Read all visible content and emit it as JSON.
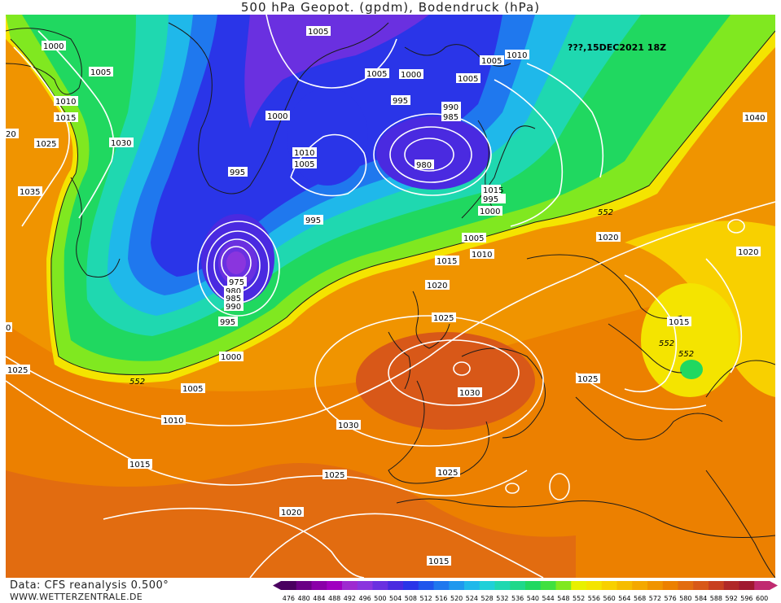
{
  "title": "500 hPa Geopot. (gpdm), Bodendruck (hPa)",
  "run_label": "???,15DEC2021 18Z",
  "footer": {
    "data_source": "Data: CFS reanalysis 0.500°",
    "website": "WWW.WETTERZENTRALE.DE"
  },
  "legend": {
    "values": [
      "476",
      "480",
      "484",
      "488",
      "492",
      "496",
      "500",
      "504",
      "508",
      "512",
      "516",
      "520",
      "524",
      "528",
      "532",
      "536",
      "540",
      "544",
      "548",
      "552",
      "556",
      "560",
      "564",
      "568",
      "572",
      "576",
      "580",
      "584",
      "588",
      "592",
      "596",
      "600"
    ],
    "colors": [
      "#4a0060",
      "#6a0085",
      "#8a00a8",
      "#a000c0",
      "#9e2ad0",
      "#8a35de",
      "#6a30e0",
      "#4a2ae0",
      "#2a35e8",
      "#1f55ec",
      "#1f78ee",
      "#1f98ee",
      "#1fb8ea",
      "#1fd0d8",
      "#1fd8b0",
      "#1fd88a",
      "#20d860",
      "#40e040",
      "#80e820",
      "#e8f000",
      "#f4e400",
      "#f8d000",
      "#f6bc00",
      "#f4a800",
      "#f09400",
      "#ec8000",
      "#e26c10",
      "#d85818",
      "#c84020",
      "#b02828",
      "#a01830",
      "#c02a70"
    ]
  },
  "isobars": [
    {
      "value": "1000"
    },
    {
      "value": "1005"
    },
    {
      "value": "1005"
    },
    {
      "value": "1010"
    },
    {
      "value": "1015"
    },
    {
      "value": "1025"
    },
    {
      "value": "1030"
    },
    {
      "value": "1035"
    },
    {
      "value": "1000"
    },
    {
      "value": "1010"
    },
    {
      "value": "1005"
    },
    {
      "value": "995"
    },
    {
      "value": "995"
    },
    {
      "value": "975"
    },
    {
      "value": "980"
    },
    {
      "value": "985"
    },
    {
      "value": "990"
    },
    {
      "value": "995"
    },
    {
      "value": "1000"
    },
    {
      "value": "1005"
    },
    {
      "value": "1010"
    },
    {
      "value": "1015"
    },
    {
      "value": "1025"
    },
    {
      "value": "1005"
    },
    {
      "value": "1005"
    },
    {
      "value": "1000"
    },
    {
      "value": "995"
    },
    {
      "value": "990"
    },
    {
      "value": "985"
    },
    {
      "value": "980"
    },
    {
      "value": "1005"
    },
    {
      "value": "1010"
    },
    {
      "value": "1015"
    },
    {
      "value": "995"
    },
    {
      "value": "1000"
    },
    {
      "value": "1005"
    },
    {
      "value": "1010"
    },
    {
      "value": "1015"
    },
    {
      "value": "1020"
    },
    {
      "value": "1025"
    },
    {
      "value": "1030"
    },
    {
      "value": "1030"
    },
    {
      "value": "1025"
    },
    {
      "value": "1025"
    },
    {
      "value": "1020"
    },
    {
      "value": "1015"
    },
    {
      "value": "1020"
    },
    {
      "value": "1025"
    },
    {
      "value": "1040"
    },
    {
      "value": "1020"
    },
    {
      "value": "1025"
    },
    {
      "value": "1015"
    },
    {
      "value": "1020"
    },
    {
      "value": "20"
    },
    {
      "value": "0"
    }
  ],
  "contour_labels": [
    "552",
    "552",
    "552",
    "552"
  ]
}
